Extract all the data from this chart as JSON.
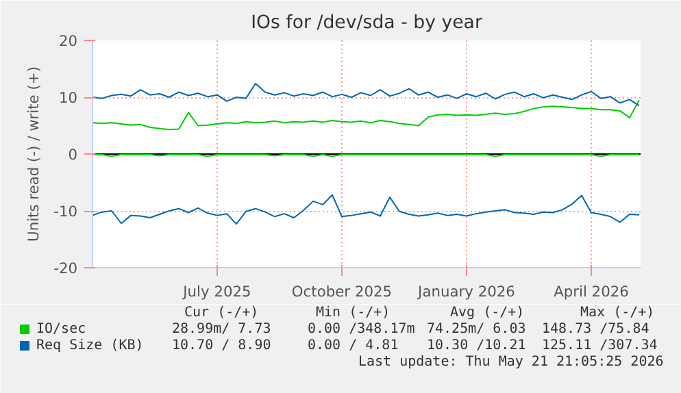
{
  "chart_data": {
    "type": "line",
    "title": "IOs for /dev/sda - by year",
    "ylabel": "Units read (-) / write (+)",
    "x": [
      "2025-04-16",
      "2025-04-23",
      "2025-04-30",
      "2025-05-07",
      "2025-05-14",
      "2025-05-21",
      "2025-05-28",
      "2025-06-04",
      "2025-06-11",
      "2025-06-18",
      "2025-06-25",
      "2025-07-02",
      "2025-07-09",
      "2025-07-16",
      "2025-07-23",
      "2025-07-30",
      "2025-08-06",
      "2025-08-13",
      "2025-08-20",
      "2025-08-27",
      "2025-09-03",
      "2025-09-10",
      "2025-09-17",
      "2025-09-24",
      "2025-10-01",
      "2025-10-08",
      "2025-10-15",
      "2025-10-22",
      "2025-10-29",
      "2025-11-05",
      "2025-11-12",
      "2025-11-19",
      "2025-11-26",
      "2025-12-03",
      "2025-12-10",
      "2025-12-17",
      "2025-12-24",
      "2025-12-31",
      "2026-01-07",
      "2026-01-14",
      "2026-01-21",
      "2026-01-28",
      "2026-02-04",
      "2026-02-11",
      "2026-02-18",
      "2026-02-25",
      "2026-03-04",
      "2026-03-11",
      "2026-03-18",
      "2026-03-25",
      "2026-04-01",
      "2026-04-08",
      "2026-04-15",
      "2026-04-22",
      "2026-04-29",
      "2026-05-06",
      "2026-05-13",
      "2026-05-20"
    ],
    "series": [
      {
        "name": "IO/sec",
        "color": "#00cc00",
        "values": [
          5.5,
          5.4,
          5.5,
          5.3,
          5.1,
          5.2,
          4.7,
          4.5,
          4.3,
          4.4,
          7.3,
          5.0,
          5.1,
          5.3,
          5.5,
          5.4,
          5.7,
          5.5,
          5.6,
          5.8,
          5.5,
          5.7,
          5.6,
          5.8,
          5.6,
          5.9,
          5.7,
          5.6,
          5.8,
          5.5,
          5.9,
          5.7,
          5.4,
          5.2,
          5.0,
          6.5,
          6.9,
          7.0,
          6.8,
          6.9,
          6.8,
          7.0,
          7.2,
          7.0,
          7.1,
          7.5,
          8.0,
          8.3,
          8.4,
          8.3,
          8.2,
          8.0,
          8.0,
          7.8,
          7.8,
          7.6,
          6.4,
          9.5
        ]
      },
      {
        "color": "#00cc00",
        "values": [
          -0.1,
          -0.1,
          -0.4,
          -0.1,
          -0.1,
          -0.1,
          -0.1,
          -0.3,
          -0.1,
          -0.1,
          -0.1,
          -0.1,
          -0.4,
          -0.1,
          -0.1,
          -0.1,
          -0.1,
          -0.1,
          -0.1,
          -0.3,
          -0.1,
          -0.1,
          -0.1,
          -0.4,
          -0.1,
          -0.4,
          -0.1,
          -0.1,
          -0.1,
          -0.1,
          -0.1,
          -0.1,
          -0.1,
          -0.1,
          -0.1,
          -0.1,
          -0.1,
          -0.1,
          -0.1,
          -0.1,
          -0.1,
          -0.1,
          -0.4,
          -0.1,
          -0.1,
          -0.1,
          -0.1,
          -0.1,
          -0.1,
          -0.1,
          -0.1,
          -0.1,
          -0.1,
          -0.4,
          -0.1,
          -0.1,
          -0.1,
          -0.1
        ]
      },
      {
        "name": "Req Size (KB)",
        "color": "#0066b3",
        "values": [
          10.0,
          9.8,
          10.3,
          10.5,
          10.2,
          11.3,
          10.4,
          10.6,
          10.0,
          10.9,
          10.3,
          10.7,
          10.1,
          10.4,
          9.3,
          10.0,
          9.8,
          12.4,
          10.9,
          10.4,
          10.8,
          10.2,
          10.6,
          10.3,
          10.9,
          10.1,
          10.5,
          10.0,
          10.8,
          10.3,
          11.3,
          10.2,
          10.7,
          11.5,
          10.4,
          10.9,
          10.0,
          10.4,
          9.8,
          10.6,
          10.1,
          10.7,
          9.7,
          10.5,
          10.9,
          10.1,
          10.6,
          9.9,
          10.4,
          10.0,
          9.6,
          10.4,
          11.0,
          9.8,
          10.1,
          9.0,
          9.6,
          8.5
        ]
      },
      {
        "color": "#0066b3",
        "values": [
          -10.8,
          -10.2,
          -10.0,
          -12.2,
          -10.8,
          -10.9,
          -11.2,
          -10.6,
          -10.0,
          -9.6,
          -10.3,
          -9.5,
          -10.4,
          -10.8,
          -10.5,
          -12.3,
          -10.1,
          -9.6,
          -10.2,
          -11.0,
          -10.5,
          -11.2,
          -9.9,
          -8.3,
          -8.9,
          -7.2,
          -11.0,
          -10.8,
          -10.5,
          -10.2,
          -10.9,
          -7.6,
          -10.1,
          -10.6,
          -10.9,
          -10.7,
          -10.4,
          -10.8,
          -10.6,
          -10.9,
          -10.5,
          -10.2,
          -10.0,
          -9.8,
          -10.3,
          -10.4,
          -10.6,
          -10.2,
          -10.3,
          -9.8,
          -8.8,
          -7.3,
          -10.3,
          -10.6,
          -11.0,
          -12.0,
          -10.6,
          -10.7
        ]
      }
    ],
    "xlim": [
      "2025-04-16",
      "2026-05-21"
    ],
    "xticks": [
      {
        "value": "2025-07-16",
        "label": "July 2025"
      },
      {
        "value": "2025-10-15",
        "label": "October 2025"
      },
      {
        "value": "2026-01-14",
        "label": "January 2026"
      },
      {
        "value": "2026-04-15",
        "label": "April 2026"
      }
    ],
    "ylim": [
      -20,
      20
    ],
    "yticks": [
      -20,
      -10,
      0,
      10,
      20
    ],
    "ref_lines": [
      {
        "axis": "y",
        "value": 0,
        "color": "#000000"
      }
    ],
    "grid": true,
    "legend": "bottom",
    "annotations": [
      "Cur (-/+)",
      "Min (-/+)",
      "Avg (-/+)",
      "Max (-/+)",
      "28.99m/ 7.73",
      "0.00 /348.17m",
      "74.25m/ 6.03",
      "148.73 /75.84",
      "10.70 / 8.90",
      "0.00 / 4.81",
      "10.30 /10.21",
      "125.11 /307.34",
      "Last update: Thu May 21 21:05:25 2026"
    ]
  }
}
